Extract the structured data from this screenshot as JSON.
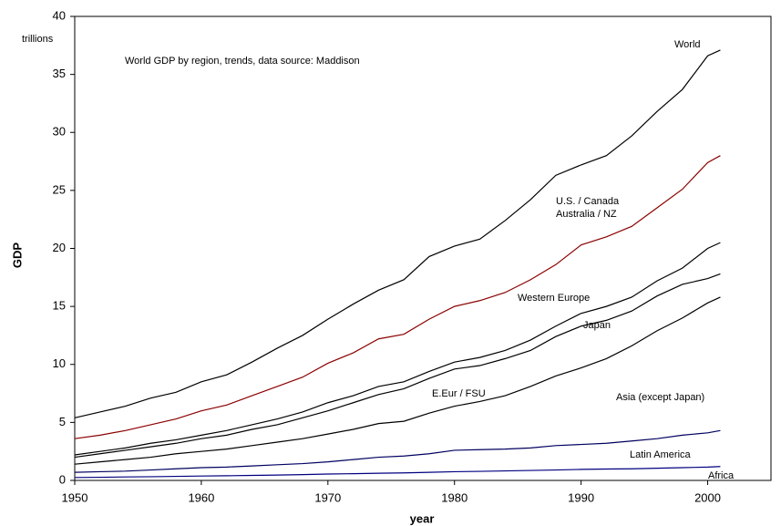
{
  "chart_data": {
    "type": "line",
    "title": "World GDP by region, trends,  data source: Maddison",
    "xlabel": "year",
    "ylabel": "GDP",
    "annotations": [
      "trillions",
      "World",
      "U.S. / Canada",
      "Australia / NZ",
      "Western Europe",
      "Japan",
      "E.Eur / FSU",
      "Asia (except Japan)",
      "Latin America",
      "Africa"
    ],
    "x": [
      1950,
      1952,
      1954,
      1956,
      1958,
      1960,
      1962,
      1964,
      1966,
      1968,
      1970,
      1972,
      1974,
      1976,
      1978,
      1980,
      1982,
      1984,
      1986,
      1988,
      1990,
      1992,
      1994,
      1996,
      1998,
      2000,
      2001
    ],
    "series": [
      {
        "color": "#000000",
        "values": [
          5.4,
          5.9,
          6.4,
          7.1,
          7.6,
          8.5,
          9.1,
          10.2,
          11.4,
          12.5,
          13.9,
          15.2,
          16.4,
          17.3,
          19.3,
          20.2,
          20.8,
          22.4,
          24.2,
          26.3,
          27.2,
          28.0,
          29.7,
          31.8,
          33.7,
          36.6,
          37.1
        ]
      },
      {
        "color": "#8b0000",
        "values": [
          3.6,
          3.9,
          4.3,
          4.8,
          5.3,
          6.0,
          6.5,
          7.3,
          8.1,
          8.9,
          10.1,
          11.0,
          12.2,
          12.6,
          13.9,
          15.0,
          15.5,
          16.2,
          17.3,
          18.6,
          20.3,
          21.0,
          21.9,
          23.5,
          25.1,
          27.4,
          28.0
        ]
      },
      {
        "color": "#000000",
        "values": [
          2.2,
          2.5,
          2.8,
          3.2,
          3.5,
          3.9,
          4.3,
          4.8,
          5.3,
          5.9,
          6.7,
          7.3,
          8.1,
          8.5,
          9.4,
          10.2,
          10.6,
          11.2,
          12.1,
          13.3,
          14.4,
          15.0,
          15.8,
          17.2,
          18.3,
          20.0,
          20.5
        ]
      },
      {
        "color": "#000000",
        "values": [
          2.0,
          2.3,
          2.6,
          2.9,
          3.2,
          3.6,
          3.9,
          4.4,
          4.8,
          5.4,
          6.0,
          6.7,
          7.4,
          7.9,
          8.8,
          9.6,
          9.9,
          10.5,
          11.2,
          12.4,
          13.3,
          13.8,
          14.6,
          15.9,
          16.9,
          17.4,
          17.8
        ]
      },
      {
        "color": "#000000",
        "values": [
          1.4,
          1.6,
          1.8,
          2.0,
          2.3,
          2.5,
          2.7,
          3.0,
          3.3,
          3.6,
          4.0,
          4.4,
          4.9,
          5.1,
          5.8,
          6.4,
          6.8,
          7.3,
          8.1,
          9.0,
          9.7,
          10.5,
          11.6,
          12.9,
          14.0,
          15.3,
          15.8
        ]
      },
      {
        "color": "#000060",
        "values": [
          0.7,
          0.75,
          0.8,
          0.9,
          1.0,
          1.1,
          1.15,
          1.25,
          1.35,
          1.45,
          1.6,
          1.8,
          2.0,
          2.1,
          2.3,
          2.6,
          2.65,
          2.7,
          2.8,
          3.0,
          3.1,
          3.2,
          3.4,
          3.6,
          3.9,
          4.1,
          4.3
        ]
      },
      {
        "color": "#000080",
        "values": [
          0.25,
          0.27,
          0.3,
          0.32,
          0.35,
          0.38,
          0.4,
          0.43,
          0.46,
          0.5,
          0.55,
          0.58,
          0.62,
          0.65,
          0.7,
          0.75,
          0.78,
          0.82,
          0.86,
          0.9,
          0.95,
          0.98,
          1.0,
          1.05,
          1.1,
          1.15,
          1.2
        ]
      }
    ],
    "xlim": [
      1950,
      2005
    ],
    "xticks": [
      1950,
      1960,
      1970,
      1980,
      1990,
      2000
    ],
    "ylim": [
      0,
      40
    ],
    "yticks": [
      0,
      5,
      10,
      15,
      20,
      25,
      30,
      35,
      40
    ],
    "grid": false
  }
}
